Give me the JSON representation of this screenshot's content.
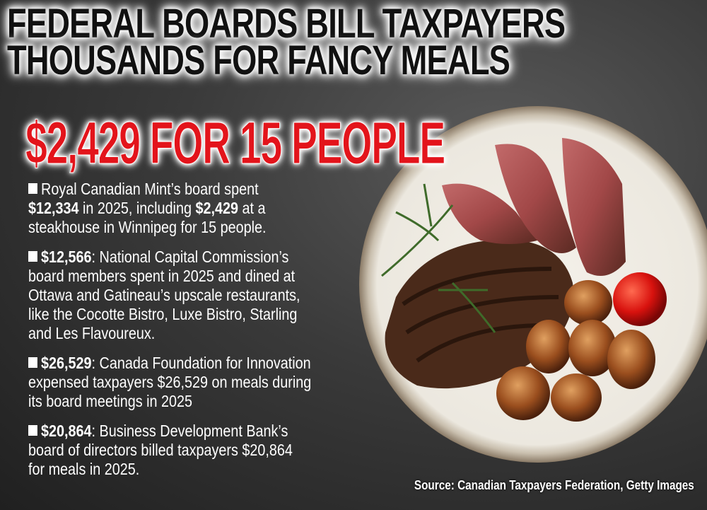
{
  "headline": {
    "line1": "FEDERAL BOARDS BILL TAXPAYERS",
    "line2": "THOUSANDS FOR FANCY MEALS"
  },
  "subheadline": "$2,429 FOR 15 PEOPLE",
  "bullets": [
    {
      "lines": [
        [
          "",
          "Royal Canadian Mint’s board spent"
        ],
        [
          "$12,334",
          " in 2025, including ",
          "$2,429",
          " at a"
        ],
        [
          "",
          "steakhouse in Winnipeg for 15 people."
        ]
      ]
    },
    {
      "lines": [
        [
          "$12,566",
          ": National Capital Commission’s"
        ],
        [
          "",
          "board members spent in 2025 and dined at"
        ],
        [
          "",
          "Ottawa and Gatineau’s upscale restaurants,"
        ],
        [
          "",
          "like the Cocotte Bistro, Luxe Bistro, Starling"
        ],
        [
          "",
          "and Les Flavoureux."
        ]
      ]
    },
    {
      "lines": [
        [
          "$26,529",
          ": Canada Foundation for Innovation"
        ],
        [
          "",
          "expensed taxpayers $26,529 on meals during"
        ],
        [
          "",
          "its board meetings in 2025"
        ]
      ]
    },
    {
      "lines": [
        [
          "$20,864",
          ": Business Development Bank’s"
        ],
        [
          "",
          "board of directors billed taxpayers $20,864"
        ],
        [
          "",
          "for meals in 2025."
        ]
      ]
    }
  ],
  "source": "Source: Canadian Taxpayers Federation, Getty Images",
  "colors": {
    "headline": "#111111",
    "subheadline": "#e3141b",
    "body": "#ffffff",
    "background": "#3a3a3a"
  },
  "image": "steak-dinner-plate-photo"
}
